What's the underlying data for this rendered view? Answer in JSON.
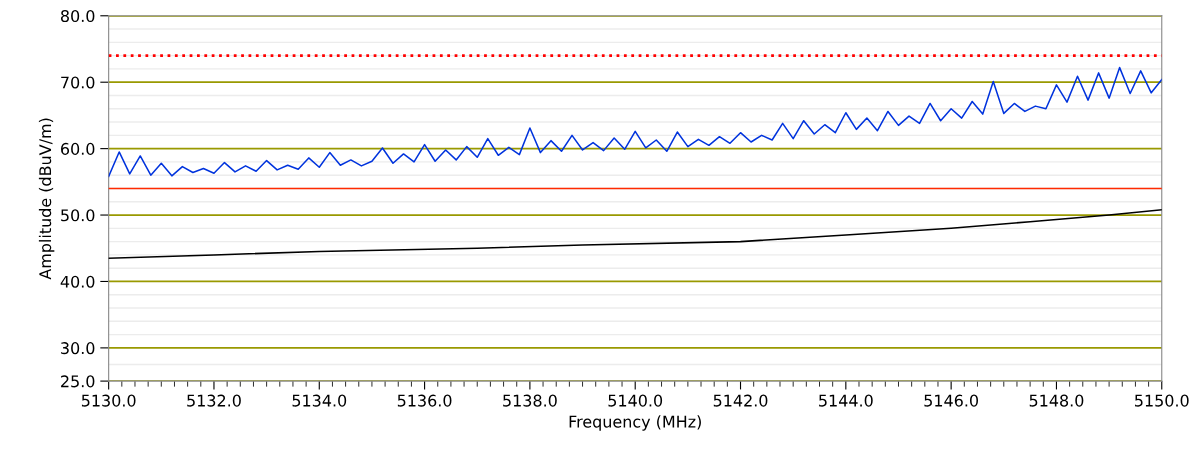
{
  "chart_data": {
    "type": "line",
    "xlabel": "Frequency (MHz)",
    "ylabel": "Amplitude (dBuV/m)",
    "xlim": [
      5130,
      5150
    ],
    "xticks": [
      {
        "value": 5130,
        "label": "5130.0"
      },
      {
        "value": 5132,
        "label": "5132.0"
      },
      {
        "value": 5134,
        "label": "5134.0"
      },
      {
        "value": 5136,
        "label": "5136.0"
      },
      {
        "value": 5138,
        "label": "5138.0"
      },
      {
        "value": 5140,
        "label": "5140.0"
      },
      {
        "value": 5142,
        "label": "5142.0"
      },
      {
        "value": 5144,
        "label": "5144.0"
      },
      {
        "value": 5146,
        "label": "5146.0"
      },
      {
        "value": 5148,
        "label": "5148.0"
      },
      {
        "value": 5150,
        "label": "5150.0"
      }
    ],
    "ylim": [
      25,
      80
    ],
    "yticks": [
      {
        "value": 25,
        "label": "25.0"
      },
      {
        "value": 30,
        "label": "30.0"
      },
      {
        "value": 40,
        "label": "40.0"
      },
      {
        "value": 50,
        "label": "50.0"
      },
      {
        "value": 60,
        "label": "60.0"
      },
      {
        "value": 70,
        "label": "70.0"
      },
      {
        "value": 80,
        "label": "80.0"
      }
    ],
    "grid": "y",
    "marker": "none",
    "ref_lines": [
      {
        "axis": "y",
        "value": 74,
        "color": "#ff0000",
        "line_style": "dotted"
      },
      {
        "axis": "y",
        "value": 54,
        "color": "#ff2a00",
        "line_style": "solid"
      }
    ],
    "series": [
      {
        "color": "#0033dd",
        "x": [
          5130.0,
          5130.2,
          5130.4,
          5130.6,
          5130.8,
          5131.0,
          5131.2,
          5131.4,
          5131.6,
          5131.8,
          5132.0,
          5132.2,
          5132.4,
          5132.6,
          5132.8,
          5133.0,
          5133.2,
          5133.4,
          5133.6,
          5133.8,
          5134.0,
          5134.2,
          5134.4,
          5134.6,
          5134.8,
          5135.0,
          5135.2,
          5135.4,
          5135.6,
          5135.8,
          5136.0,
          5136.2,
          5136.4,
          5136.6,
          5136.8,
          5137.0,
          5137.2,
          5137.4,
          5137.6,
          5137.8,
          5138.0,
          5138.2,
          5138.4,
          5138.6,
          5138.8,
          5139.0,
          5139.2,
          5139.4,
          5139.6,
          5139.8,
          5140.0,
          5140.2,
          5140.4,
          5140.6,
          5140.8,
          5141.0,
          5141.2,
          5141.4,
          5141.6,
          5141.8,
          5142.0,
          5142.2,
          5142.4,
          5142.6,
          5142.8,
          5143.0,
          5143.2,
          5143.4,
          5143.6,
          5143.8,
          5144.0,
          5144.2,
          5144.4,
          5144.6,
          5144.8,
          5145.0,
          5145.2,
          5145.4,
          5145.6,
          5145.8,
          5146.0,
          5146.2,
          5146.4,
          5146.6,
          5146.8,
          5147.0,
          5147.2,
          5147.4,
          5147.6,
          5147.8,
          5148.0,
          5148.2,
          5148.4,
          5148.6,
          5148.8,
          5149.0,
          5149.2,
          5149.4,
          5149.6,
          5149.8,
          5150.0
        ],
        "values": [
          55.8,
          59.5,
          56.2,
          58.9,
          56.0,
          57.8,
          55.9,
          57.3,
          56.4,
          57.0,
          56.3,
          57.9,
          56.5,
          57.4,
          56.6,
          58.2,
          56.8,
          57.5,
          56.9,
          58.6,
          57.2,
          59.4,
          57.5,
          58.3,
          57.4,
          58.1,
          60.1,
          57.8,
          59.2,
          58.0,
          60.6,
          58.1,
          59.8,
          58.3,
          60.3,
          58.7,
          61.5,
          59.0,
          60.2,
          59.1,
          63.1,
          59.4,
          61.2,
          59.6,
          62.0,
          59.8,
          60.9,
          59.7,
          61.6,
          59.9,
          62.6,
          60.1,
          61.3,
          59.6,
          62.5,
          60.3,
          61.4,
          60.5,
          61.8,
          60.8,
          62.4,
          61.0,
          62.0,
          61.3,
          63.8,
          61.5,
          64.2,
          62.2,
          63.6,
          62.4,
          65.4,
          62.9,
          64.6,
          62.7,
          65.6,
          63.5,
          64.9,
          63.8,
          66.8,
          64.2,
          66.0,
          64.6,
          67.1,
          65.2,
          70.1,
          65.3,
          66.8,
          65.6,
          66.4,
          66.0,
          69.6,
          67.0,
          70.9,
          67.3,
          71.4,
          67.6,
          72.2,
          68.3,
          71.7,
          68.4,
          70.4
        ]
      },
      {
        "color": "#000000",
        "x": [
          5130,
          5132,
          5134,
          5137,
          5139,
          5142,
          5144,
          5146,
          5147.5,
          5149,
          5150
        ],
        "values": [
          43.5,
          44.0,
          44.5,
          45.0,
          45.5,
          46.0,
          47.0,
          48.0,
          49.0,
          50.0,
          50.8
        ]
      }
    ]
  }
}
